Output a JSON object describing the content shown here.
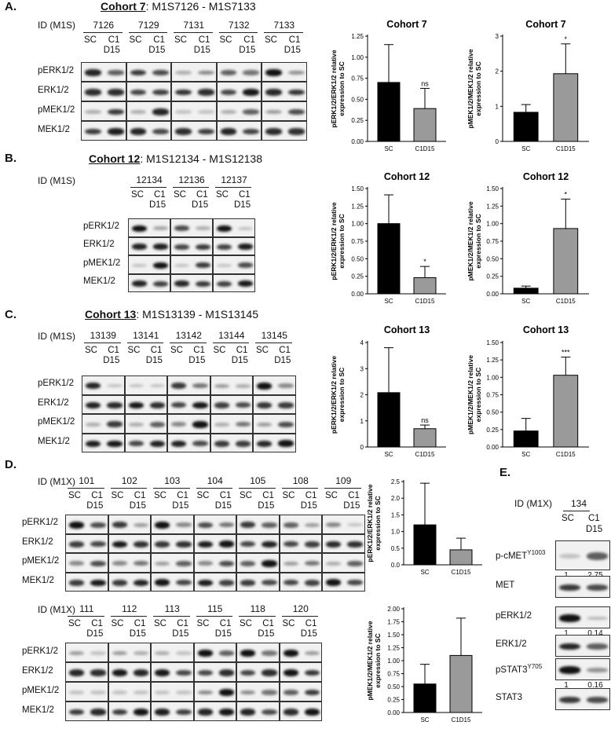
{
  "panels": {
    "A": {
      "letter": "A.",
      "title_bold": "Cohort 7",
      "title_rest": ": M1S7126 - M1S7133",
      "id_label": "ID (M1S)",
      "ids": [
        "7126",
        "7129",
        "7131",
        "7132",
        "7133"
      ]
    },
    "B": {
      "letter": "B.",
      "title_bold": "Cohort 12",
      "title_rest": ": M1S12134 - M1S12138",
      "id_label": "ID (M1S)",
      "ids": [
        "12134",
        "12136",
        "12137"
      ]
    },
    "C": {
      "letter": "C.",
      "title_bold": "Cohort 13",
      "title_rest": ": M1S13139 - M1S13145",
      "id_label": "ID (M1S)",
      "ids": [
        "13139",
        "13141",
        "13142",
        "13144",
        "13145"
      ]
    },
    "D": {
      "letter": "D.",
      "id_label": "ID (M1X)",
      "ids_top": [
        "101",
        "102",
        "103",
        "104",
        "105",
        "108",
        "109"
      ],
      "ids_bottom": [
        "111",
        "112",
        "113",
        "115",
        "118",
        "120"
      ]
    },
    "E": {
      "letter": "E.",
      "id_label": "ID (M1X)",
      "ids": [
        "134"
      ],
      "rows": [
        "p-cMET",
        "MET",
        "pERK1/2",
        "ERK1/2",
        "pSTAT3",
        "STAT3"
      ],
      "sup": {
        "p-cMET": "Y1003",
        "pSTAT3": "Y705"
      },
      "quant": {
        "p-cMET": [
          "1",
          "2.75"
        ],
        "pERK1/2": [
          "1",
          "0.14"
        ],
        "pSTAT3": [
          "1",
          "0.16"
        ]
      }
    }
  },
  "lanes": {
    "sc": "SC",
    "c1": "C1",
    "d15": "D15"
  },
  "blot_rows": [
    "pERK1/2",
    "ERK1/2",
    "pMEK1/2",
    "MEK1/2"
  ],
  "chart_data": [
    {
      "type": "bar",
      "title": "Cohort 7",
      "ylabel": "pERK1/2/ERK1/2 relative expression to SC",
      "categories": [
        "SC",
        "C1D15"
      ],
      "values": [
        0.7,
        0.39
      ],
      "errors": [
        0.45,
        0.24
      ],
      "ylim": [
        0,
        1.25
      ],
      "ticks": [
        "0.00",
        "0.25",
        "0.50",
        "0.75",
        "1.00",
        "1.25"
      ],
      "sig": "ns"
    },
    {
      "type": "bar",
      "title": "Cohort 7",
      "ylabel": "pMEK1/2/MEK1/2 relative expression to SC",
      "categories": [
        "SC",
        "C1D15"
      ],
      "values": [
        0.83,
        1.93
      ],
      "errors": [
        0.22,
        0.85
      ],
      "ylim": [
        0,
        3
      ],
      "ticks": [
        "0",
        "1",
        "2",
        "3"
      ],
      "sig": "*"
    },
    {
      "type": "bar",
      "title": "Cohort 12",
      "ylabel": "pERK1/2/ERK1/2 relative expression to SC",
      "categories": [
        "SC",
        "C1D15"
      ],
      "values": [
        1.0,
        0.23
      ],
      "errors": [
        0.41,
        0.16
      ],
      "ylim": [
        0,
        1.5
      ],
      "ticks": [
        "0.00",
        "0.25",
        "0.50",
        "0.75",
        "1.00",
        "1.25",
        "1.50"
      ],
      "sig": "*"
    },
    {
      "type": "bar",
      "title": "Cohort 12",
      "ylabel": "pMEK1/2/MEK1/2 relative expression to SC",
      "categories": [
        "SC",
        "C1D15"
      ],
      "values": [
        0.08,
        0.93
      ],
      "errors": [
        0.03,
        0.42
      ],
      "ylim": [
        0,
        1.5
      ],
      "ticks": [
        "0.00",
        "0.25",
        "0.50",
        "0.75",
        "1.00",
        "1.25",
        "1.50"
      ],
      "sig": "*"
    },
    {
      "type": "bar",
      "title": "Cohort 13",
      "ylabel": "pERK1/2/ERK1/2 relative expression to SC",
      "categories": [
        "SC",
        "C1D15"
      ],
      "values": [
        2.08,
        0.7
      ],
      "errors": [
        1.72,
        0.14
      ],
      "ylim": [
        0,
        4
      ],
      "ticks": [
        "0",
        "1",
        "2",
        "3",
        "4"
      ],
      "sig": "ns"
    },
    {
      "type": "bar",
      "title": "Cohort 13",
      "ylabel": "pMEK1/2/MEK1/2 relative expression to SC",
      "categories": [
        "SC",
        "C1D15"
      ],
      "values": [
        0.23,
        1.03
      ],
      "errors": [
        0.18,
        0.26
      ],
      "ylim": [
        0,
        1.5
      ],
      "ticks": [
        "0.00",
        "0.25",
        "0.50",
        "0.75",
        "1.00",
        "1.25",
        "1.50"
      ],
      "sig": "***"
    },
    {
      "type": "bar",
      "title": "",
      "ylabel": "pERK1/2/ERK1/2 relative expression to SC",
      "categories": [
        "SC",
        "C1D15"
      ],
      "values": [
        1.2,
        0.45
      ],
      "errors": [
        1.25,
        0.35
      ],
      "ylim": [
        0,
        2.5
      ],
      "ticks": [
        "0.0",
        "0.5",
        "1.0",
        "1.5",
        "2.0",
        "2.5"
      ],
      "sig": ""
    },
    {
      "type": "bar",
      "title": "",
      "ylabel": "pMEK1/2/MEK1/2 relative expression to SC",
      "categories": [
        "SC",
        "C1D15"
      ],
      "values": [
        0.55,
        1.1
      ],
      "errors": [
        0.38,
        0.72
      ],
      "ylim": [
        0,
        2
      ],
      "ticks": [
        "0.00",
        "0.25",
        "0.50",
        "0.75",
        "1.00",
        "1.25",
        "1.50",
        "1.75",
        "2.00"
      ],
      "sig": ""
    }
  ],
  "colors": {
    "sc_bar": "#000000",
    "c1d15_bar": "#9a9a9a"
  }
}
